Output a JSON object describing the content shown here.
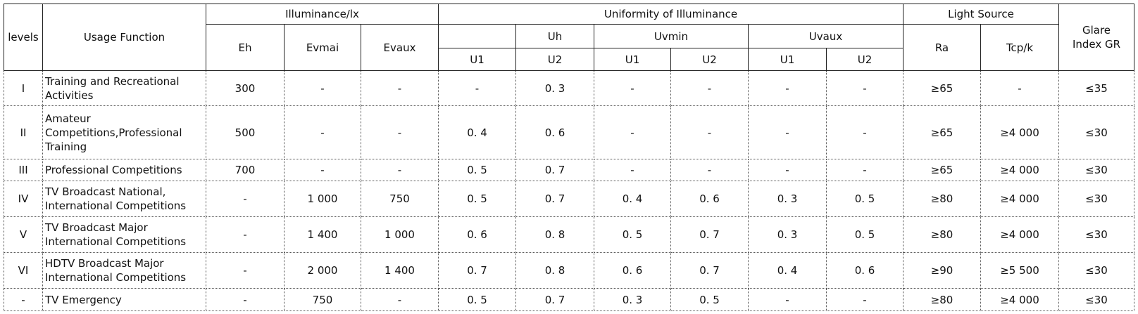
{
  "table": {
    "header": {
      "levels": "levels",
      "usage": "Usage Function",
      "illuminance": "Illuminance/lx",
      "uniformity": "Uniformity of Illuminance",
      "light_source": "Light Source",
      "glare": "Glare Index GR",
      "eh": "Eh",
      "evmai": "Evmai",
      "evaux": "Evaux",
      "uh": "Uh",
      "uvmin": "Uvmin",
      "uvaux": "Uvaux",
      "ra": "Ra",
      "tcp": "Tcp/k",
      "sub": [
        "U1",
        "U2",
        "U1",
        "U2",
        "U1",
        "U2"
      ]
    },
    "rows": [
      [
        "I",
        "Training and Recreational Activities",
        "300",
        "-",
        "-",
        "-",
        "0. 3",
        "-",
        "-",
        "-",
        "-",
        "≥65",
        "-",
        "≤35"
      ],
      [
        "II",
        "Amateur Competitions,Professional Training",
        "500",
        "-",
        "-",
        "0. 4",
        "0. 6",
        "-",
        "-",
        "-",
        "-",
        "≥65",
        "≥4 000",
        "≤30"
      ],
      [
        "III",
        "Professional Competitions",
        "700",
        "-",
        "-",
        "0. 5",
        "0. 7",
        "-",
        "-",
        "-",
        "-",
        "≥65",
        "≥4 000",
        "≤30"
      ],
      [
        "IV",
        "TV Broadcast National, International Competitions",
        "-",
        "1  000",
        "750",
        "0. 5",
        "0. 7",
        "0. 4",
        "0. 6",
        "0. 3",
        "0. 5",
        "≥80",
        "≥4 000",
        "≤30"
      ],
      [
        "V",
        "TV Broadcast Major International Competitions",
        "-",
        "1 400",
        "1  000",
        "0. 6",
        "0. 8",
        "0. 5",
        "0. 7",
        "0. 3",
        "0. 5",
        "≥80",
        "≥4 000",
        "≤30"
      ],
      [
        "VI",
        "HDTV Broadcast Major International Competitions",
        "-",
        "2 000",
        "1 400",
        "0. 7",
        "0. 8",
        "0. 6",
        "0. 7",
        "0. 4",
        "0. 6",
        "≥90",
        "≥5 500",
        "≤30"
      ],
      [
        "-",
        "TV Emergency",
        "-",
        "750",
        "-",
        "0. 5",
        "0. 7",
        "0. 3",
        "0. 5",
        "-",
        "-",
        "≥80",
        "≥4 000",
        "≤30"
      ]
    ]
  }
}
